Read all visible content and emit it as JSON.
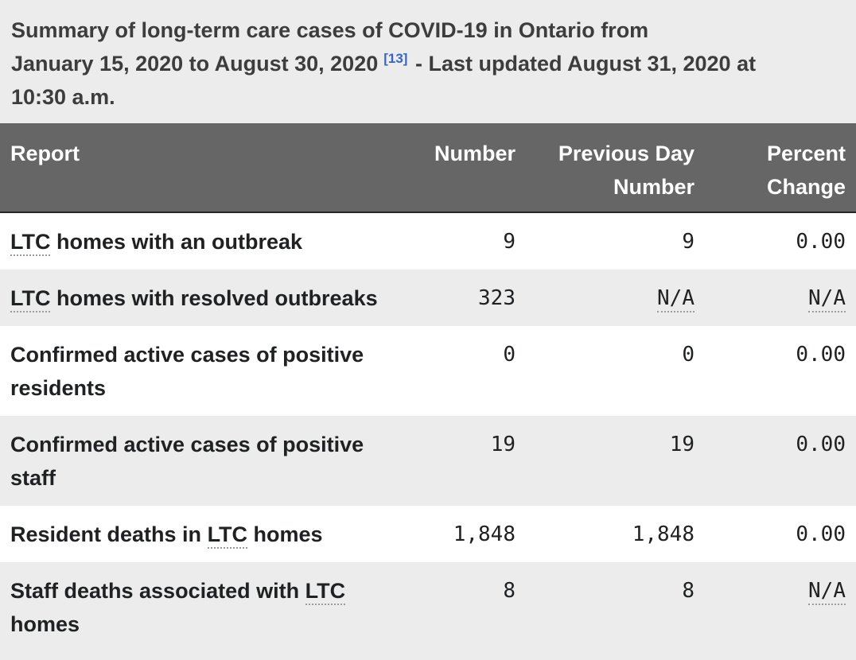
{
  "page": {
    "caption": {
      "line1": "Summary of long-term care cases of COVID-19 in Ontario from",
      "line2_before_ref": "January 15, 2020 to August 30, 2020",
      "reference": "[13]",
      "line2_after_ref": "- Last updated August 31, 2020 at",
      "line3": "10:30 a.m."
    }
  },
  "colors": {
    "caption_background": "#ececec",
    "caption_text": "#3d3d3d",
    "reference_link": "#3366cc",
    "header_background": "#666666",
    "header_text": "#ffffff",
    "header_border_bottom": "#252525",
    "row_background_odd": "#ffffff",
    "row_background_even": "#ececec",
    "cell_text": "#202122",
    "abbr_dotted_underline": "#9b9b9b"
  },
  "table": {
    "columns": [
      {
        "key": "report",
        "label": "Report",
        "align": "left"
      },
      {
        "key": "number",
        "label": "Number",
        "align": "right"
      },
      {
        "key": "previous_day_number",
        "label": "Previous Day Number",
        "align": "right"
      },
      {
        "key": "percent_change",
        "label": "Percent Change",
        "align": "right"
      }
    ],
    "rows": [
      {
        "report": [
          {
            "text": "LTC",
            "abbr": true
          },
          {
            "text": " homes with an outbreak",
            "abbr": false
          }
        ],
        "number": [
          {
            "text": "9",
            "abbr": false
          }
        ],
        "previous_day_number": [
          {
            "text": "9",
            "abbr": false
          }
        ],
        "percent_change": [
          {
            "text": "0.00",
            "abbr": false
          }
        ]
      },
      {
        "report": [
          {
            "text": "LTC",
            "abbr": true
          },
          {
            "text": " homes with resolved outbreaks",
            "abbr": false
          }
        ],
        "number": [
          {
            "text": "323",
            "abbr": false
          }
        ],
        "previous_day_number": [
          {
            "text": "N/A",
            "abbr": true
          }
        ],
        "percent_change": [
          {
            "text": "N/A",
            "abbr": true
          }
        ]
      },
      {
        "report": [
          {
            "text": "Confirmed active cases of positive residents",
            "abbr": false
          }
        ],
        "number": [
          {
            "text": "0",
            "abbr": false
          }
        ],
        "previous_day_number": [
          {
            "text": "0",
            "abbr": false
          }
        ],
        "percent_change": [
          {
            "text": "0.00",
            "abbr": false
          }
        ]
      },
      {
        "report": [
          {
            "text": "Confirmed active cases of positive staff",
            "abbr": false
          }
        ],
        "number": [
          {
            "text": "19",
            "abbr": false
          }
        ],
        "previous_day_number": [
          {
            "text": "19",
            "abbr": false
          }
        ],
        "percent_change": [
          {
            "text": "0.00",
            "abbr": false
          }
        ]
      },
      {
        "report": [
          {
            "text": "Resident deaths in ",
            "abbr": false
          },
          {
            "text": "LTC",
            "abbr": true
          },
          {
            "text": " homes",
            "abbr": false
          }
        ],
        "number": [
          {
            "text": "1,848",
            "abbr": false
          }
        ],
        "previous_day_number": [
          {
            "text": "1,848",
            "abbr": false
          }
        ],
        "percent_change": [
          {
            "text": "0.00",
            "abbr": false
          }
        ]
      },
      {
        "report": [
          {
            "text": "Staff deaths associated with ",
            "abbr": false
          },
          {
            "text": "LTC",
            "abbr": true
          },
          {
            "text": " homes",
            "abbr": false
          }
        ],
        "number": [
          {
            "text": "8",
            "abbr": false
          }
        ],
        "previous_day_number": [
          {
            "text": "8",
            "abbr": false
          }
        ],
        "percent_change": [
          {
            "text": "N/A",
            "abbr": true
          }
        ]
      }
    ]
  }
}
